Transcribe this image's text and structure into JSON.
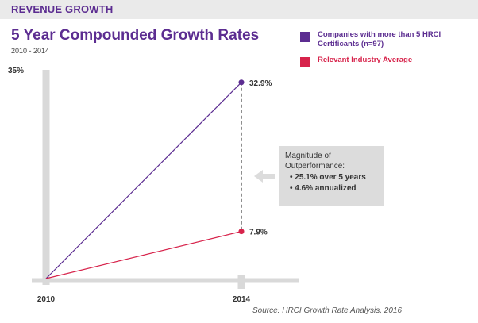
{
  "header": {
    "section_label": "REVENUE GROWTH"
  },
  "chart_data": {
    "type": "line",
    "title": "5 Year Compounded Growth Rates",
    "subtitle": "2010 - 2014",
    "x": [
      2010,
      2014
    ],
    "x_tick_labels": [
      "2010",
      "2014"
    ],
    "ylim": [
      0,
      35
    ],
    "y_tick_label": "35%",
    "series": [
      {
        "name": "Companies with more than 5 HRCI Certificants (n=97)",
        "color": "#5c2d91",
        "values": [
          0,
          32.9
        ],
        "end_label": "32.9%"
      },
      {
        "name": "Relevant Industry Average",
        "color": "#d7234b",
        "values": [
          0,
          7.9
        ],
        "end_label": "7.9%"
      }
    ],
    "annotation": {
      "heading": "Magnitude of Outperformance:",
      "bullets": [
        "25.1% over 5 years",
        "4.6% annualized"
      ]
    }
  },
  "legend": [
    {
      "label": "Companies with more than 5 HRCI Certificants (n=97)",
      "color": "#5c2d91"
    },
    {
      "label": "Relevant Industry Average",
      "color": "#d7234b"
    }
  ],
  "source": "Source: HRCI Growth Rate Analysis, 2016",
  "colors": {
    "accent": "#5c2d91",
    "industry": "#d7234b",
    "axis": "#d9d9d9",
    "callout_bg": "#dcdcdc"
  }
}
